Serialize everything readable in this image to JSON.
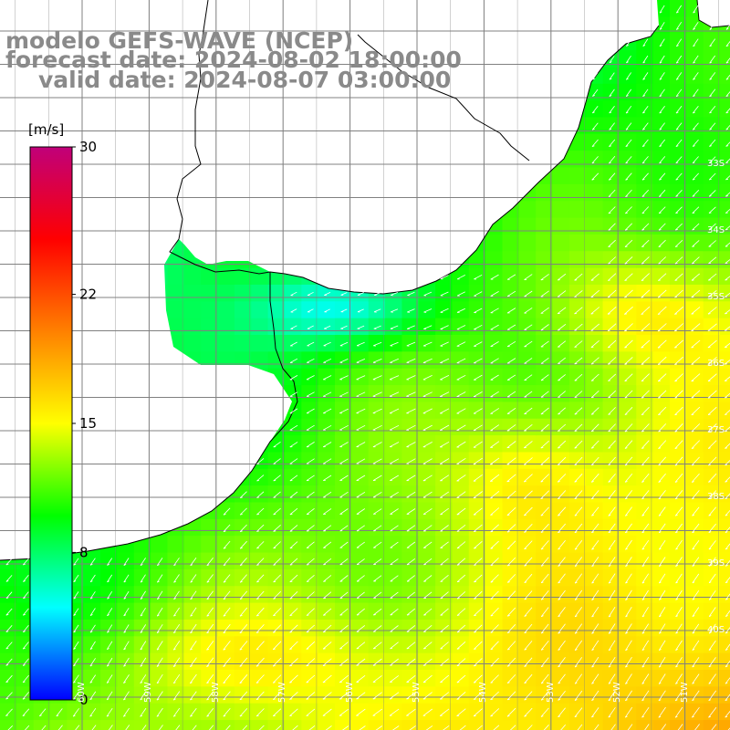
{
  "title": {
    "line1": "modelo GEFS-WAVE (NCEP)",
    "line2": "forecast date: 2024-08-02 18:00:00",
    "line3": "valid date: 2024-08-07 03:00:00"
  },
  "colorbar": {
    "unit": "[m/s]",
    "min": 0,
    "max": 30,
    "ticks": [
      "30",
      "22",
      "15",
      "8",
      "0"
    ],
    "tick_values": [
      30,
      22,
      15,
      8,
      0
    ],
    "colors": [
      "#0000ff",
      "#00ffff",
      "#00ff00",
      "#ffff00",
      "#ff8000",
      "#ff0000",
      "#c0007a"
    ]
  },
  "map": {
    "variable": "wind speed",
    "lat_labels": [
      "33S",
      "34S",
      "35S",
      "36S",
      "37S",
      "38S",
      "39S",
      "40S"
    ],
    "lat_values": [
      -33,
      -34,
      -35,
      -36,
      -37,
      -38,
      -39,
      -40
    ],
    "lon_labels": [
      "60W",
      "59W",
      "58W",
      "57W",
      "56W",
      "55W",
      "54W",
      "53W",
      "52W",
      "51W"
    ],
    "lon_values": [
      -60,
      -59,
      -58,
      -57,
      -56,
      -55,
      -54,
      -53,
      -52,
      -51
    ],
    "land_color": "#ffffff",
    "grid_color": "#808080",
    "coast_color": "#000000",
    "arrow_color": "#ffffff"
  }
}
